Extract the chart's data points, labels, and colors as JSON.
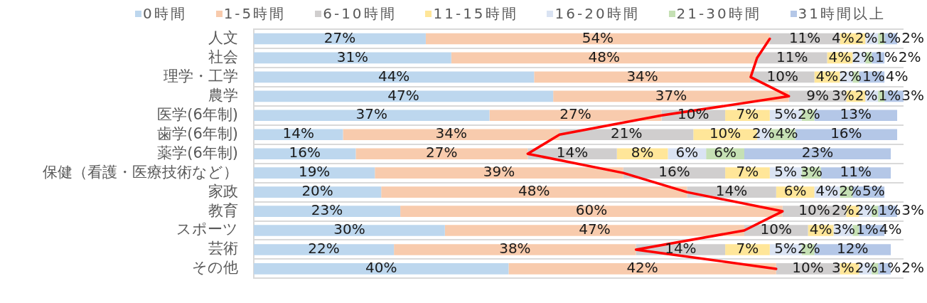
{
  "chart_data": {
    "type": "bar",
    "orientation": "horizontal",
    "stacked": true,
    "categories": [
      "人文",
      "社会",
      "理学・工学",
      "農学",
      "医学(6年制)",
      "歯学(6年制)",
      "薬学(6年制)",
      "保健（看護・医療技術など）",
      "家政",
      "教育",
      "スポーツ",
      "芸術",
      "その他"
    ],
    "series": [
      {
        "name": "0時間",
        "color": "#bdd7ee",
        "values": [
          27,
          31,
          44,
          47,
          37,
          14,
          16,
          19,
          20,
          23,
          30,
          22,
          40
        ],
        "value_labels": [
          "27%",
          "31%",
          "44%",
          "47%",
          "37%",
          "14%",
          "16%",
          "19%",
          "20%",
          "23%",
          "30%",
          "22%",
          "40%"
        ]
      },
      {
        "name": "1-5時間",
        "color": "#f8cbad",
        "values": [
          54,
          48,
          34,
          37,
          27,
          34,
          27,
          39,
          48,
          60,
          47,
          38,
          42
        ],
        "value_labels": [
          "54%",
          "48%",
          "34%",
          "37%",
          "27%",
          "34%",
          "27%",
          "39%",
          "48%",
          "60%",
          "47%",
          "38%",
          "42%"
        ]
      },
      {
        "name": "6-10時間",
        "color": "#d0cece",
        "values": [
          11,
          11,
          10,
          9,
          10,
          21,
          14,
          16,
          14,
          10,
          10,
          14,
          10
        ],
        "value_labels": [
          "11%",
          "11%",
          "10%",
          "9%",
          "10%",
          "21%",
          "14%",
          "16%",
          "14%",
          "10%",
          "10%",
          "14%",
          "10%"
        ]
      },
      {
        "name": "11-15時間",
        "color": "#ffe699",
        "values": [
          4,
          4,
          4,
          3,
          7,
          10,
          8,
          7,
          6,
          2,
          4,
          7,
          3
        ],
        "value_labels": [
          "4%",
          "4%",
          "4%",
          "3%",
          "7%",
          "10%",
          "8%",
          "7%",
          "6%",
          "2%",
          "4%",
          "7%",
          "3%"
        ]
      },
      {
        "name": "16-20時間",
        "color": "#dae3f3",
        "values": [
          2,
          2,
          2,
          2,
          5,
          2,
          6,
          5,
          4,
          2,
          3,
          5,
          2
        ],
        "value_labels": [
          "2%",
          "2%",
          "2%",
          "2%",
          "5%",
          "2%",
          "6%",
          "5%",
          "4%",
          "2%",
          "3%",
          "5%",
          "2%"
        ]
      },
      {
        "name": "21-30時間",
        "color": "#c5e0b4",
        "values": [
          1,
          1,
          1,
          1,
          2,
          4,
          6,
          3,
          2,
          1,
          1,
          2,
          1
        ],
        "value_labels": [
          "1%",
          "1%",
          "1%",
          "1%",
          "2%",
          "4%",
          "6%",
          "3%",
          "2%",
          "1%",
          "1%",
          "2%",
          "1%"
        ]
      },
      {
        "name": "31時間以上",
        "color": "#b4c7e7",
        "values": [
          2,
          2,
          4,
          3,
          13,
          16,
          23,
          11,
          5,
          3,
          4,
          12,
          2
        ],
        "value_labels": [
          "2%",
          "2%",
          "4%",
          "3%",
          "13%",
          "16%",
          "23%",
          "11%",
          "5%",
          "3%",
          "4%",
          "12%",
          "2%"
        ]
      },
      {
        "type": "line",
        "color": "#ff0000",
        "marker": "none",
        "values": [
          81,
          79,
          78,
          84,
          64,
          48,
          43,
          58,
          68,
          83,
          77,
          60,
          82
        ]
      }
    ],
    "xlim": [
      0,
      102
    ],
    "legend": "top",
    "grid": "y",
    "tick_labels": "y"
  }
}
